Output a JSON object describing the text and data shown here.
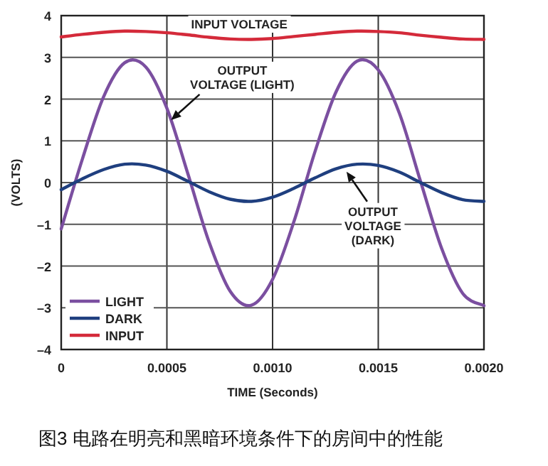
{
  "chart_data": {
    "type": "line",
    "xlabel": "TIME (Seconds)",
    "ylabel": "(VOLTS)",
    "x": [
      0,
      0.0001,
      0.0002,
      0.0003,
      0.0004,
      0.0005,
      0.0006,
      0.0007,
      0.0008,
      0.0009,
      0.001,
      0.0011,
      0.0012,
      0.0013,
      0.0014,
      0.0015,
      0.0016,
      0.0017,
      0.0018,
      0.0019,
      0.002
    ],
    "series": [
      {
        "name": "LIGHT",
        "color": "#7b4fa0",
        "values": [
          -1.11,
          0.56,
          2.05,
          2.87,
          2.77,
          1.78,
          0.2,
          -1.43,
          -2.61,
          -2.94,
          -2.32,
          -0.95,
          0.73,
          2.17,
          2.91,
          2.7,
          1.66,
          0.03,
          -1.58,
          -2.66,
          -2.95
        ]
      },
      {
        "name": "DARK",
        "color": "#1f3f7f",
        "values": [
          -0.17,
          0.09,
          0.31,
          0.44,
          0.42,
          0.27,
          0.03,
          -0.22,
          -0.4,
          -0.45,
          -0.35,
          -0.14,
          0.11,
          0.33,
          0.44,
          0.41,
          0.25,
          0.0,
          -0.24,
          -0.41,
          -0.45
        ]
      },
      {
        "name": "INPUT",
        "color": "#d42a3a",
        "values": [
          3.49,
          3.55,
          3.6,
          3.63,
          3.62,
          3.59,
          3.54,
          3.48,
          3.44,
          3.43,
          3.45,
          3.5,
          3.55,
          3.6,
          3.63,
          3.62,
          3.59,
          3.53,
          3.48,
          3.44,
          3.43
        ]
      }
    ],
    "xlim": [
      0,
      0.002
    ],
    "ylim": [
      -4,
      4
    ],
    "xticks": [
      0,
      {
        "value": 0.0005,
        "label": "0.0005"
      },
      {
        "value": 0.001,
        "label": "0.0010"
      },
      {
        "value": 0.0015,
        "label": "0.0015"
      },
      {
        "value": 0.002,
        "label": "0.0020"
      }
    ],
    "yticks": [
      {
        "value": -4,
        "label": "–4"
      },
      {
        "value": -3,
        "label": "–3"
      },
      {
        "value": -2,
        "label": "–2"
      },
      {
        "value": -1,
        "label": "–1"
      },
      0,
      1,
      2,
      3,
      4
    ],
    "grid": true,
    "legend": "bottom left",
    "line_style": "solid",
    "annotations": [
      {
        "text": "INPUT VOLTAGE",
        "x": 0.0006,
        "y": 3.54
      },
      {
        "text": "OUTPUT\nVOLTAGE (LIGHT)",
        "x": 0.00052,
        "y": 1.5
      },
      {
        "text": "OUTPUT\nVOLTAGE\n(DARK)",
        "x": 0.00135,
        "y": 0.26
      },
      "图3 电路在明亮和黑暗环境条件下的房间中的性能"
    ]
  }
}
